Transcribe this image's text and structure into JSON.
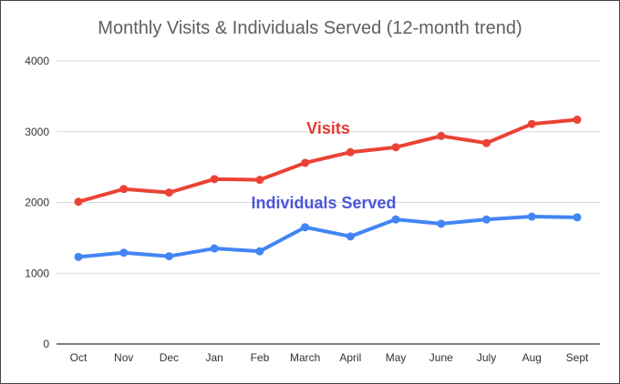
{
  "chart_data": {
    "type": "line",
    "title": "Monthly Visits & Individuals Served (12-month trend)",
    "categories": [
      "Oct",
      "Nov",
      "Dec",
      "Jan",
      "Feb",
      "March",
      "April",
      "May",
      "June",
      "July",
      "Aug",
      "Sept"
    ],
    "series": [
      {
        "name": "Visits",
        "color": "#ea4335",
        "label_color": "#e03c31",
        "values": [
          2010,
          2190,
          2140,
          2330,
          2320,
          2560,
          2710,
          2780,
          2940,
          2840,
          3110,
          3170
        ]
      },
      {
        "name": "Individuals Served",
        "color": "#4285f4",
        "label_color": "#4a56d6",
        "values": [
          1230,
          1290,
          1240,
          1350,
          1310,
          1650,
          1520,
          1760,
          1700,
          1760,
          1800,
          1790
        ]
      }
    ],
    "ylim": [
      0,
      4000
    ],
    "yticks": [
      "0",
      "1000",
      "2000",
      "3000",
      "4000"
    ],
    "grid": true,
    "xlabel": "",
    "ylabel": ""
  }
}
